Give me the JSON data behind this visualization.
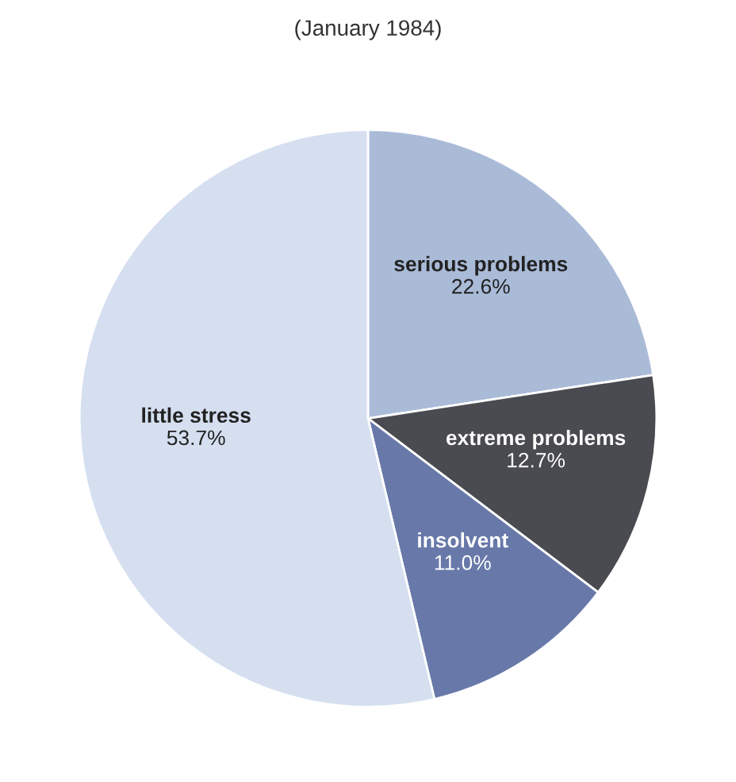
{
  "chart_data": {
    "type": "pie",
    "title": "(January 1984)",
    "categories": [
      "serious problems",
      "extreme problems",
      "insolvent",
      "little stress"
    ],
    "values": [
      22.6,
      12.7,
      11.0,
      53.7
    ],
    "value_labels": [
      "22.6%",
      "12.7%",
      "11.0%",
      "53.7%"
    ],
    "colors": [
      "#aabbd8",
      "#4a4b50",
      "#6778a9",
      "#d5dff0"
    ]
  }
}
